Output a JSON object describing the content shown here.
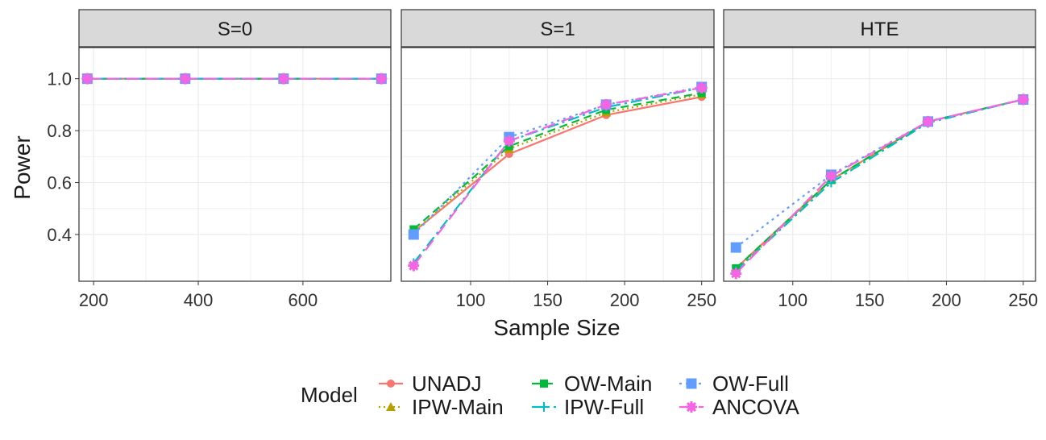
{
  "chart_data": {
    "type": "line",
    "ylabel": "Power",
    "xlabel": "Sample Size",
    "grid": true,
    "legend": {
      "title": "Model",
      "position": "bottom",
      "entries": [
        "UNADJ",
        "IPW-Main",
        "OW-Main",
        "IPW-Full",
        "OW-Full",
        "ANCOVA"
      ]
    },
    "ylim": [
      0.22,
      1.12
    ],
    "yticks": [
      0.4,
      0.6,
      0.8,
      1.0
    ],
    "ytick_labels": [
      "0.4",
      "0.6",
      "0.8",
      "1.0"
    ],
    "series_styles": {
      "UNADJ": {
        "color": "#F8766D",
        "dash": "",
        "marker": "circle"
      },
      "IPW-Main": {
        "color": "#B79F00",
        "dash": "2,4",
        "marker": "triangle"
      },
      "OW-Main": {
        "color": "#00BA38",
        "dash": "10,6",
        "marker": "square"
      },
      "IPW-Full": {
        "color": "#00BFC4",
        "dash": "14,5,3,5",
        "marker": "plus"
      },
      "OW-Full": {
        "color": "#619CFF",
        "dash": "3,5",
        "marker": "boxsquare"
      },
      "ANCOVA": {
        "color": "#F564E3",
        "dash": "16,8",
        "marker": "star"
      }
    },
    "panels": [
      {
        "strip": "S=0",
        "xlim": [
          172,
          768
        ],
        "xticks": [
          200,
          400,
          600
        ],
        "xtick_labels": [
          "200",
          "400",
          "600"
        ],
        "x": [
          188,
          375,
          563,
          750
        ],
        "series": [
          {
            "name": "UNADJ",
            "values": [
              1.0,
              1.0,
              1.0,
              1.0
            ]
          },
          {
            "name": "IPW-Main",
            "values": [
              1.0,
              1.0,
              1.0,
              1.0
            ]
          },
          {
            "name": "OW-Main",
            "values": [
              1.0,
              1.0,
              1.0,
              1.0
            ]
          },
          {
            "name": "IPW-Full",
            "values": [
              1.0,
              1.0,
              1.0,
              1.0
            ]
          },
          {
            "name": "OW-Full",
            "values": [
              1.0,
              1.0,
              1.0,
              1.0
            ]
          },
          {
            "name": "ANCOVA",
            "values": [
              1.0,
              1.0,
              1.0,
              1.0
            ]
          }
        ]
      },
      {
        "strip": "S=1",
        "xlim": [
          55,
          258
        ],
        "xticks": [
          100,
          150,
          200,
          250
        ],
        "xtick_labels": [
          "100",
          "150",
          "200",
          "250"
        ],
        "x": [
          63,
          125,
          188,
          250
        ],
        "series": [
          {
            "name": "UNADJ",
            "values": [
              0.41,
              0.71,
              0.86,
              0.93
            ]
          },
          {
            "name": "IPW-Main",
            "values": [
              0.41,
              0.73,
              0.87,
              0.94
            ]
          },
          {
            "name": "OW-Main",
            "values": [
              0.42,
              0.74,
              0.88,
              0.945
            ]
          },
          {
            "name": "IPW-Full",
            "values": [
              0.29,
              0.76,
              0.89,
              0.965
            ]
          },
          {
            "name": "OW-Full",
            "values": [
              0.4,
              0.775,
              0.9,
              0.968
            ]
          },
          {
            "name": "ANCOVA",
            "values": [
              0.28,
              0.76,
              0.9,
              0.965
            ]
          }
        ]
      },
      {
        "strip": "HTE",
        "xlim": [
          55,
          258
        ],
        "xticks": [
          100,
          150,
          200,
          250
        ],
        "xtick_labels": [
          "100",
          "150",
          "200",
          "250"
        ],
        "x": [
          63,
          125,
          188,
          250
        ],
        "series": [
          {
            "name": "UNADJ",
            "values": [
              0.27,
              0.61,
              0.835,
              0.92
            ]
          },
          {
            "name": "IPW-Main",
            "values": [
              0.26,
              0.61,
              0.835,
              0.92
            ]
          },
          {
            "name": "OW-Main",
            "values": [
              0.27,
              0.61,
              0.835,
              0.92
            ]
          },
          {
            "name": "IPW-Full",
            "values": [
              0.26,
              0.6,
              0.83,
              0.92
            ]
          },
          {
            "name": "OW-Full",
            "values": [
              0.35,
              0.63,
              0.835,
              0.92
            ]
          },
          {
            "name": "ANCOVA",
            "values": [
              0.25,
              0.625,
              0.835,
              0.92
            ]
          }
        ]
      }
    ]
  }
}
